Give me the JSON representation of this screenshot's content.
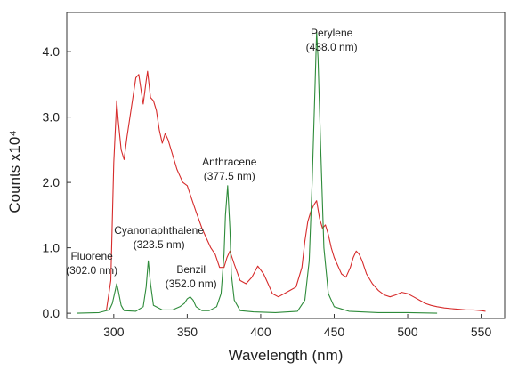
{
  "chart_data": {
    "type": "line",
    "title": "",
    "xlabel": "Wavelength (nm)",
    "ylabel": "Counts x10⁴",
    "xlim": [
      268,
      566
    ],
    "ylim": [
      -0.08,
      4.6
    ],
    "x_ticks": [
      {
        "value": 300,
        "label": "300"
      },
      {
        "value": 350,
        "label": "350"
      },
      {
        "value": 400,
        "label": "400"
      },
      {
        "value": 450,
        "label": "450"
      },
      {
        "value": 500,
        "label": "500"
      },
      {
        "value": 550,
        "label": "550"
      }
    ],
    "y_ticks": [
      {
        "value": 0,
        "label": "0.0"
      },
      {
        "value": 1,
        "label": "1.0"
      },
      {
        "value": 2,
        "label": "2.0"
      },
      {
        "value": 3,
        "label": "3.0"
      },
      {
        "value": 4,
        "label": "4.0"
      }
    ],
    "grid": false,
    "legend": "none",
    "series": [
      {
        "color": "#d62b2b",
        "x": [
          295,
          298,
          300,
          302,
          303,
          305,
          307,
          309,
          311,
          313,
          315,
          317,
          319,
          320,
          322,
          323,
          325,
          327,
          329,
          331,
          333,
          335,
          337,
          339,
          341,
          343,
          345,
          347,
          350,
          353,
          356,
          360,
          363,
          366,
          369,
          372,
          375,
          377,
          379,
          382,
          386,
          390,
          394,
          398,
          402,
          405,
          408,
          412,
          416,
          420,
          424,
          428,
          430,
          432,
          434,
          436,
          438,
          440,
          442,
          444,
          446,
          448,
          450,
          452,
          455,
          458,
          461,
          463,
          465,
          467,
          469,
          472,
          476,
          480,
          484,
          488,
          492,
          496,
          500,
          504,
          508,
          512,
          516,
          520,
          525,
          530,
          535,
          540,
          545,
          550,
          553
        ],
        "y": [
          0.05,
          0.5,
          2.3,
          3.25,
          2.95,
          2.5,
          2.35,
          2.7,
          3.0,
          3.3,
          3.6,
          3.65,
          3.35,
          3.2,
          3.55,
          3.7,
          3.3,
          3.25,
          3.1,
          2.8,
          2.6,
          2.75,
          2.65,
          2.5,
          2.35,
          2.2,
          2.1,
          2.0,
          1.95,
          1.75,
          1.55,
          1.3,
          1.15,
          1.0,
          0.9,
          0.7,
          0.7,
          0.85,
          0.95,
          0.75,
          0.5,
          0.45,
          0.55,
          0.72,
          0.6,
          0.45,
          0.3,
          0.25,
          0.3,
          0.35,
          0.4,
          0.7,
          1.1,
          1.4,
          1.55,
          1.65,
          1.72,
          1.45,
          1.3,
          1.35,
          1.2,
          1.0,
          0.85,
          0.75,
          0.6,
          0.55,
          0.7,
          0.85,
          0.95,
          0.9,
          0.8,
          0.6,
          0.45,
          0.35,
          0.28,
          0.25,
          0.28,
          0.32,
          0.3,
          0.25,
          0.2,
          0.15,
          0.12,
          0.1,
          0.08,
          0.07,
          0.06,
          0.05,
          0.05,
          0.04,
          0.03
        ]
      },
      {
        "color": "#2e8b3a",
        "x": [
          275,
          290,
          297,
          299,
          301,
          302,
          303,
          305,
          307,
          315,
          320,
          322,
          323.5,
          325,
          327,
          333,
          340,
          345,
          348,
          350,
          352,
          354,
          356,
          360,
          365,
          370,
          373,
          375,
          376,
          377.5,
          379,
          380,
          382,
          386,
          395,
          410,
          425,
          430,
          433,
          435,
          437,
          438,
          439,
          441,
          443,
          446,
          450,
          460,
          480,
          500,
          520
        ],
        "y": [
          0.0,
          0.01,
          0.05,
          0.15,
          0.35,
          0.45,
          0.35,
          0.12,
          0.04,
          0.03,
          0.1,
          0.4,
          0.8,
          0.45,
          0.12,
          0.05,
          0.05,
          0.1,
          0.15,
          0.22,
          0.25,
          0.2,
          0.1,
          0.04,
          0.04,
          0.1,
          0.3,
          0.9,
          1.5,
          1.95,
          1.3,
          0.6,
          0.2,
          0.04,
          0.02,
          0.01,
          0.03,
          0.2,
          0.8,
          2.0,
          3.5,
          4.3,
          3.9,
          2.4,
          1.0,
          0.3,
          0.1,
          0.03,
          0.01,
          0.01,
          0.0
        ]
      }
    ],
    "annotations": [
      {
        "lines": [
          "Fluorene",
          "(302.0 nm)"
        ],
        "x": 302.0
      },
      {
        "lines": [
          "Cyanonaphthalene",
          "(323.5 nm)"
        ],
        "x": 323.5
      },
      {
        "lines": [
          "Benzil",
          "(352.0 nm)"
        ],
        "x": 352.0
      },
      {
        "lines": [
          "Anthracene",
          "(377.5 nm)"
        ],
        "x": 377.5
      },
      {
        "lines": [
          "Perylene",
          "(438.0 nm)"
        ],
        "x": 438.0
      }
    ]
  }
}
